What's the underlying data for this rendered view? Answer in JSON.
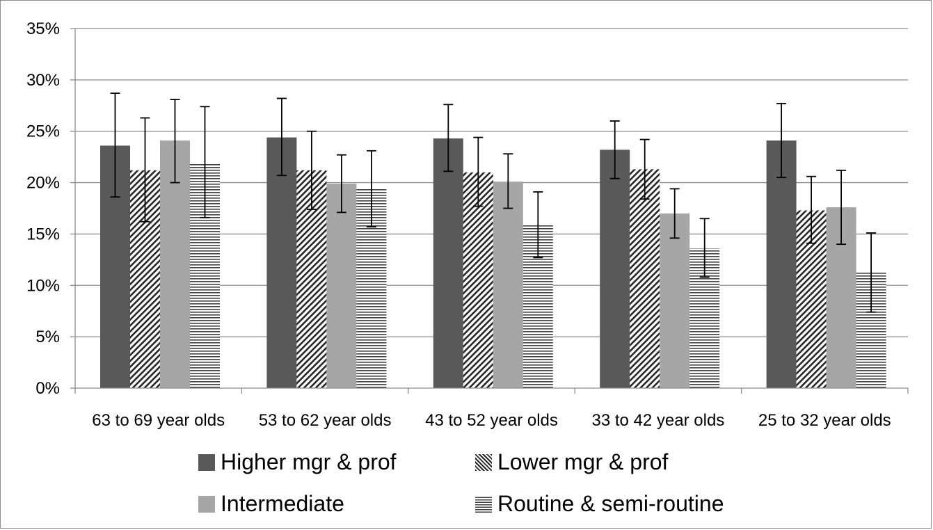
{
  "chart_data": {
    "type": "bar",
    "categories": [
      "63 to 69 year olds",
      "53 to 62 year olds",
      "43 to 52 year olds",
      "33 to 42 year olds",
      "25 to 32 year olds"
    ],
    "ylim": [
      0,
      35
    ],
    "yticks": [
      "0%",
      "5%",
      "10%",
      "15%",
      "20%",
      "25%",
      "30%",
      "35%"
    ],
    "grid": true,
    "legend_position": "bottom",
    "error_bars": true,
    "series": [
      {
        "name": "Higher mgr & prof",
        "values": [
          23.6,
          24.4,
          24.3,
          23.2,
          24.1
        ],
        "err_low": [
          18.6,
          20.7,
          21.1,
          20.4,
          20.5
        ],
        "err_high": [
          28.7,
          28.2,
          27.6,
          26.0,
          27.7
        ],
        "fill": "solid-dark"
      },
      {
        "name": "Lower mgr & prof",
        "values": [
          21.2,
          21.2,
          21.0,
          21.3,
          17.3
        ],
        "err_low": [
          16.2,
          17.4,
          17.7,
          18.4,
          14.1
        ],
        "err_high": [
          26.3,
          25.0,
          24.4,
          24.2,
          20.6
        ],
        "fill": "diagonal-hatch"
      },
      {
        "name": "Intermediate",
        "values": [
          24.1,
          19.9,
          20.1,
          17.0,
          17.6
        ],
        "err_low": [
          20.0,
          17.1,
          17.5,
          14.6,
          14.0
        ],
        "err_high": [
          28.1,
          22.7,
          22.8,
          19.4,
          21.2
        ],
        "fill": "solid-light"
      },
      {
        "name": "Routine & semi-routine",
        "values": [
          21.9,
          19.4,
          15.9,
          13.6,
          11.3
        ],
        "err_low": [
          16.6,
          15.7,
          12.7,
          10.8,
          7.4
        ],
        "err_high": [
          27.4,
          23.1,
          19.1,
          16.5,
          15.1
        ],
        "fill": "horizontal-lines"
      }
    ]
  },
  "colors": {
    "dark_bar": "#595959",
    "light_bar": "#a6a6a6",
    "hatch": "#262626",
    "grid": "#8c8c8c"
  }
}
